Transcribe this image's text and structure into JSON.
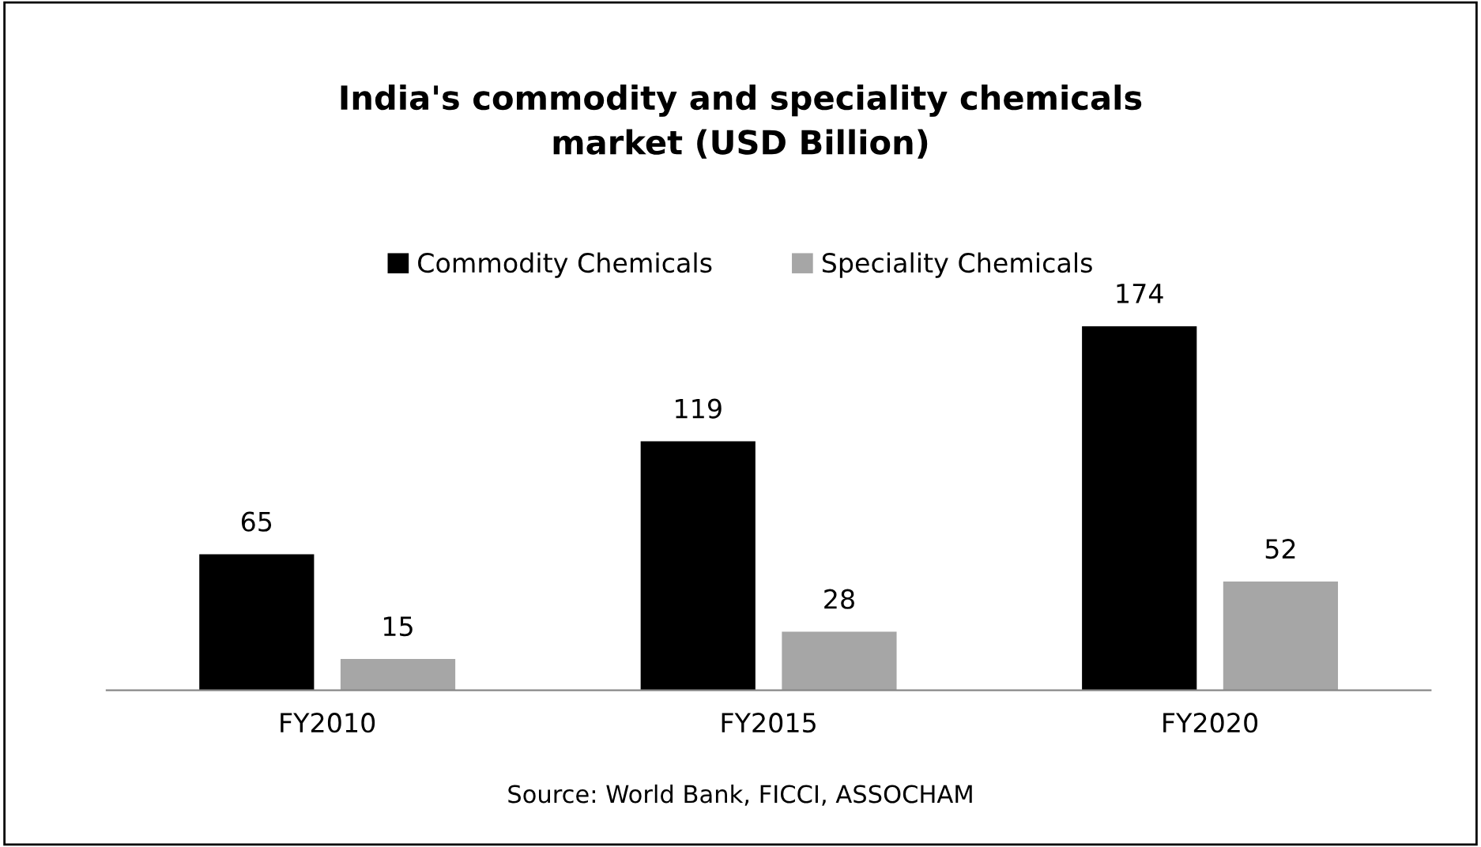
{
  "chart_data": {
    "type": "bar",
    "title": "India's commodity and speciality chemicals\nmarket (USD Billion)",
    "categories": [
      "FY2010",
      "FY2015",
      "FY2020"
    ],
    "series": [
      {
        "name": "Commodity Chemicals",
        "color": "#000000",
        "values": [
          65,
          119,
          174
        ]
      },
      {
        "name": "Speciality Chemicals",
        "color": "#a6a6a6",
        "values": [
          15,
          28,
          52
        ]
      }
    ],
    "data_labels": true,
    "legend": "top",
    "annotations": [
      "Source: World Bank, FICCI, ASSOCHAM"
    ]
  }
}
